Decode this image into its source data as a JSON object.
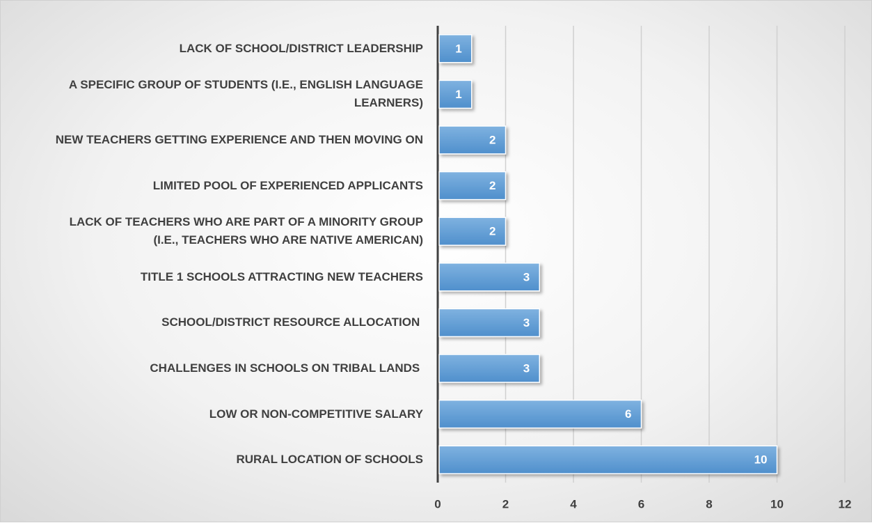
{
  "chart_data": {
    "type": "bar",
    "orientation": "horizontal",
    "categories": [
      "LACK OF SCHOOL/DISTRICT LEADERSHIP",
      "A SPECIFIC GROUP OF STUDENTS (I.E., ENGLISH LANGUAGE LEARNERS)",
      "NEW TEACHERS GETTING EXPERIENCE AND THEN MOVING ON",
      "LIMITED POOL OF EXPERIENCED APPLICANTS",
      "LACK OF TEACHERS WHO ARE PART OF A MINORITY GROUP (I.E., TEACHERS WHO ARE NATIVE AMERICAN)",
      "TITLE 1 SCHOOLS ATTRACTING NEW TEACHERS",
      "SCHOOL/DISTRICT RESOURCE ALLOCATION ",
      "CHALLENGES IN SCHOOLS ON TRIBAL LANDS ",
      "LOW OR NON-COMPETITIVE SALARY",
      "RURAL LOCATION OF SCHOOLS"
    ],
    "values": [
      1,
      1,
      2,
      2,
      2,
      3,
      3,
      3,
      6,
      10
    ],
    "color": "#5b9bd5",
    "xlim": [
      0,
      12
    ],
    "xticks": [
      0,
      2,
      4,
      6,
      8,
      10,
      12
    ],
    "grid": true
  }
}
